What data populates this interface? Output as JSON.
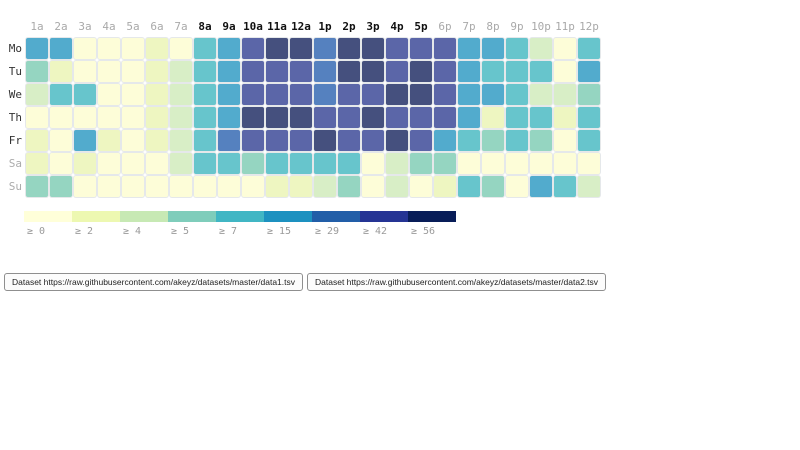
{
  "chart_data": {
    "type": "heatmap",
    "x_categories": [
      "1a",
      "2a",
      "3a",
      "4a",
      "5a",
      "6a",
      "7a",
      "8a",
      "9a",
      "10a",
      "11a",
      "12a",
      "1p",
      "2p",
      "3p",
      "4p",
      "5p",
      "6p",
      "7p",
      "8p",
      "9p",
      "10p",
      "11p",
      "12p"
    ],
    "y_categories": [
      "Mo",
      "Tu",
      "We",
      "Th",
      "Fr",
      "Sa",
      "Su"
    ],
    "emphasized_hours": [
      "8a",
      "9a",
      "10a",
      "11a",
      "12a",
      "1p",
      "2p",
      "3p",
      "4p",
      "5p"
    ],
    "muted_days": [
      "Sa",
      "Su"
    ],
    "levels": [
      [
        5,
        5,
        0,
        0,
        0,
        1,
        0,
        4,
        5,
        7,
        8,
        8,
        6,
        8,
        8,
        7,
        7,
        7,
        5,
        5,
        4,
        2,
        0,
        4
      ],
      [
        3,
        1,
        0,
        0,
        0,
        1,
        2,
        4,
        5,
        7,
        7,
        7,
        6,
        8,
        8,
        7,
        8,
        7,
        5,
        4,
        4,
        4,
        0,
        5
      ],
      [
        2,
        4,
        4,
        0,
        0,
        1,
        2,
        4,
        5,
        7,
        7,
        7,
        6,
        7,
        7,
        8,
        8,
        7,
        5,
        5,
        4,
        2,
        2,
        3
      ],
      [
        0,
        0,
        0,
        0,
        0,
        1,
        2,
        4,
        5,
        8,
        8,
        8,
        7,
        7,
        8,
        7,
        7,
        7,
        5,
        1,
        4,
        4,
        1,
        4
      ],
      [
        1,
        0,
        5,
        1,
        0,
        1,
        2,
        4,
        6,
        7,
        7,
        7,
        8,
        7,
        7,
        8,
        7,
        5,
        4,
        3,
        4,
        3,
        0,
        4
      ],
      [
        1,
        0,
        1,
        0,
        0,
        0,
        2,
        4,
        4,
        3,
        4,
        4,
        4,
        4,
        0,
        2,
        3,
        3,
        0,
        0,
        0,
        0,
        0,
        0
      ],
      [
        3,
        3,
        0,
        0,
        0,
        0,
        0,
        0,
        0,
        0,
        1,
        1,
        2,
        3,
        0,
        2,
        0,
        1,
        4,
        3,
        0,
        5,
        4,
        2
      ]
    ],
    "cell_colors": [
      "#fdfdd8",
      "#eef6c1",
      "#d8eec6",
      "#95d5c1",
      "#67c5cc",
      "#52abcd",
      "#5581bf",
      "#5b66a8",
      "#45507e"
    ],
    "legend": {
      "labels": [
        "≥ 0",
        "≥ 2",
        "≥ 4",
        "≥ 5",
        "≥ 7",
        "≥ 15",
        "≥ 29",
        "≥ 42",
        "≥ 56"
      ],
      "colors": [
        "#ffffd9",
        "#edf8b1",
        "#c7e9b4",
        "#7fcdbb",
        "#41b6c4",
        "#1d91c0",
        "#225ea8",
        "#253494",
        "#081d58"
      ],
      "position": "bottom"
    },
    "style": {
      "label_color_strong": "#111111",
      "label_color_muted": "#a9a9a9",
      "grid_gap_color": "#ffffff"
    }
  },
  "buttons": [
    {
      "label": "Dataset https://raw.githubusercontent.com/akeyz/datasets/master/data1.tsv"
    },
    {
      "label": "Dataset https://raw.githubusercontent.com/akeyz/datasets/master/data2.tsv"
    }
  ]
}
